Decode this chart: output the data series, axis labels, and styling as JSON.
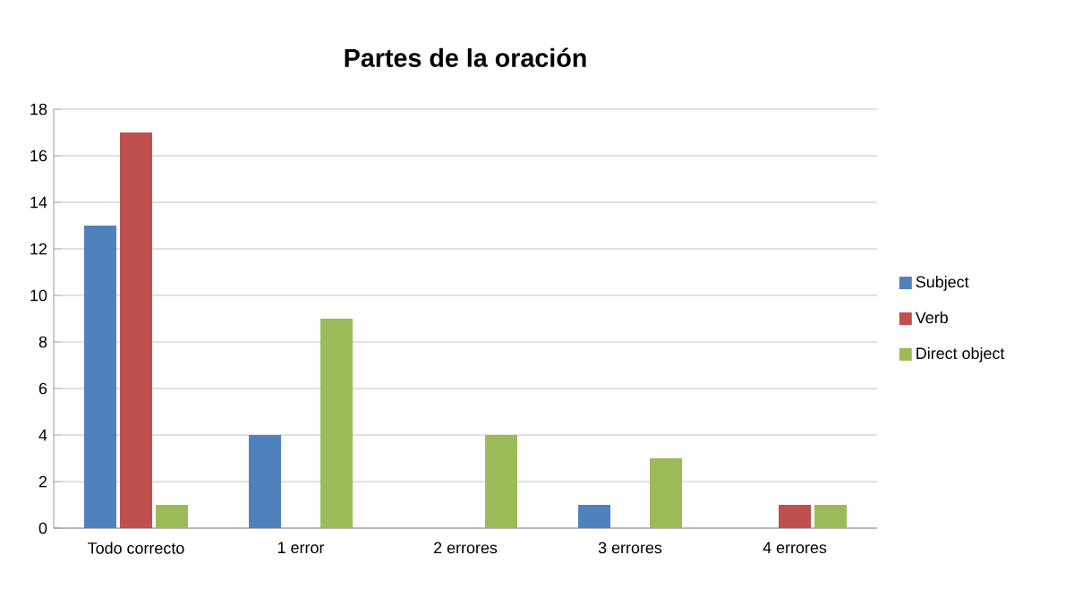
{
  "chart_data": {
    "type": "bar",
    "title": "Partes de la oración",
    "categories": [
      "Todo correcto",
      "1 error",
      "2 errores",
      "3 errores",
      "4 errores"
    ],
    "series": [
      {
        "name": "Subject",
        "color": "#4f81bd",
        "values": [
          13,
          4,
          0,
          1,
          0
        ]
      },
      {
        "name": "Verb",
        "color": "#c0504d",
        "values": [
          17,
          0,
          0,
          0,
          1
        ]
      },
      {
        "name": "Direct object",
        "color": "#9bbb59",
        "values": [
          1,
          9,
          4,
          3,
          1
        ]
      }
    ],
    "ylim": [
      0,
      18
    ],
    "yticks": [
      0,
      2,
      4,
      6,
      8,
      10,
      12,
      14,
      16,
      18
    ],
    "grid": "y",
    "legend": "right"
  }
}
